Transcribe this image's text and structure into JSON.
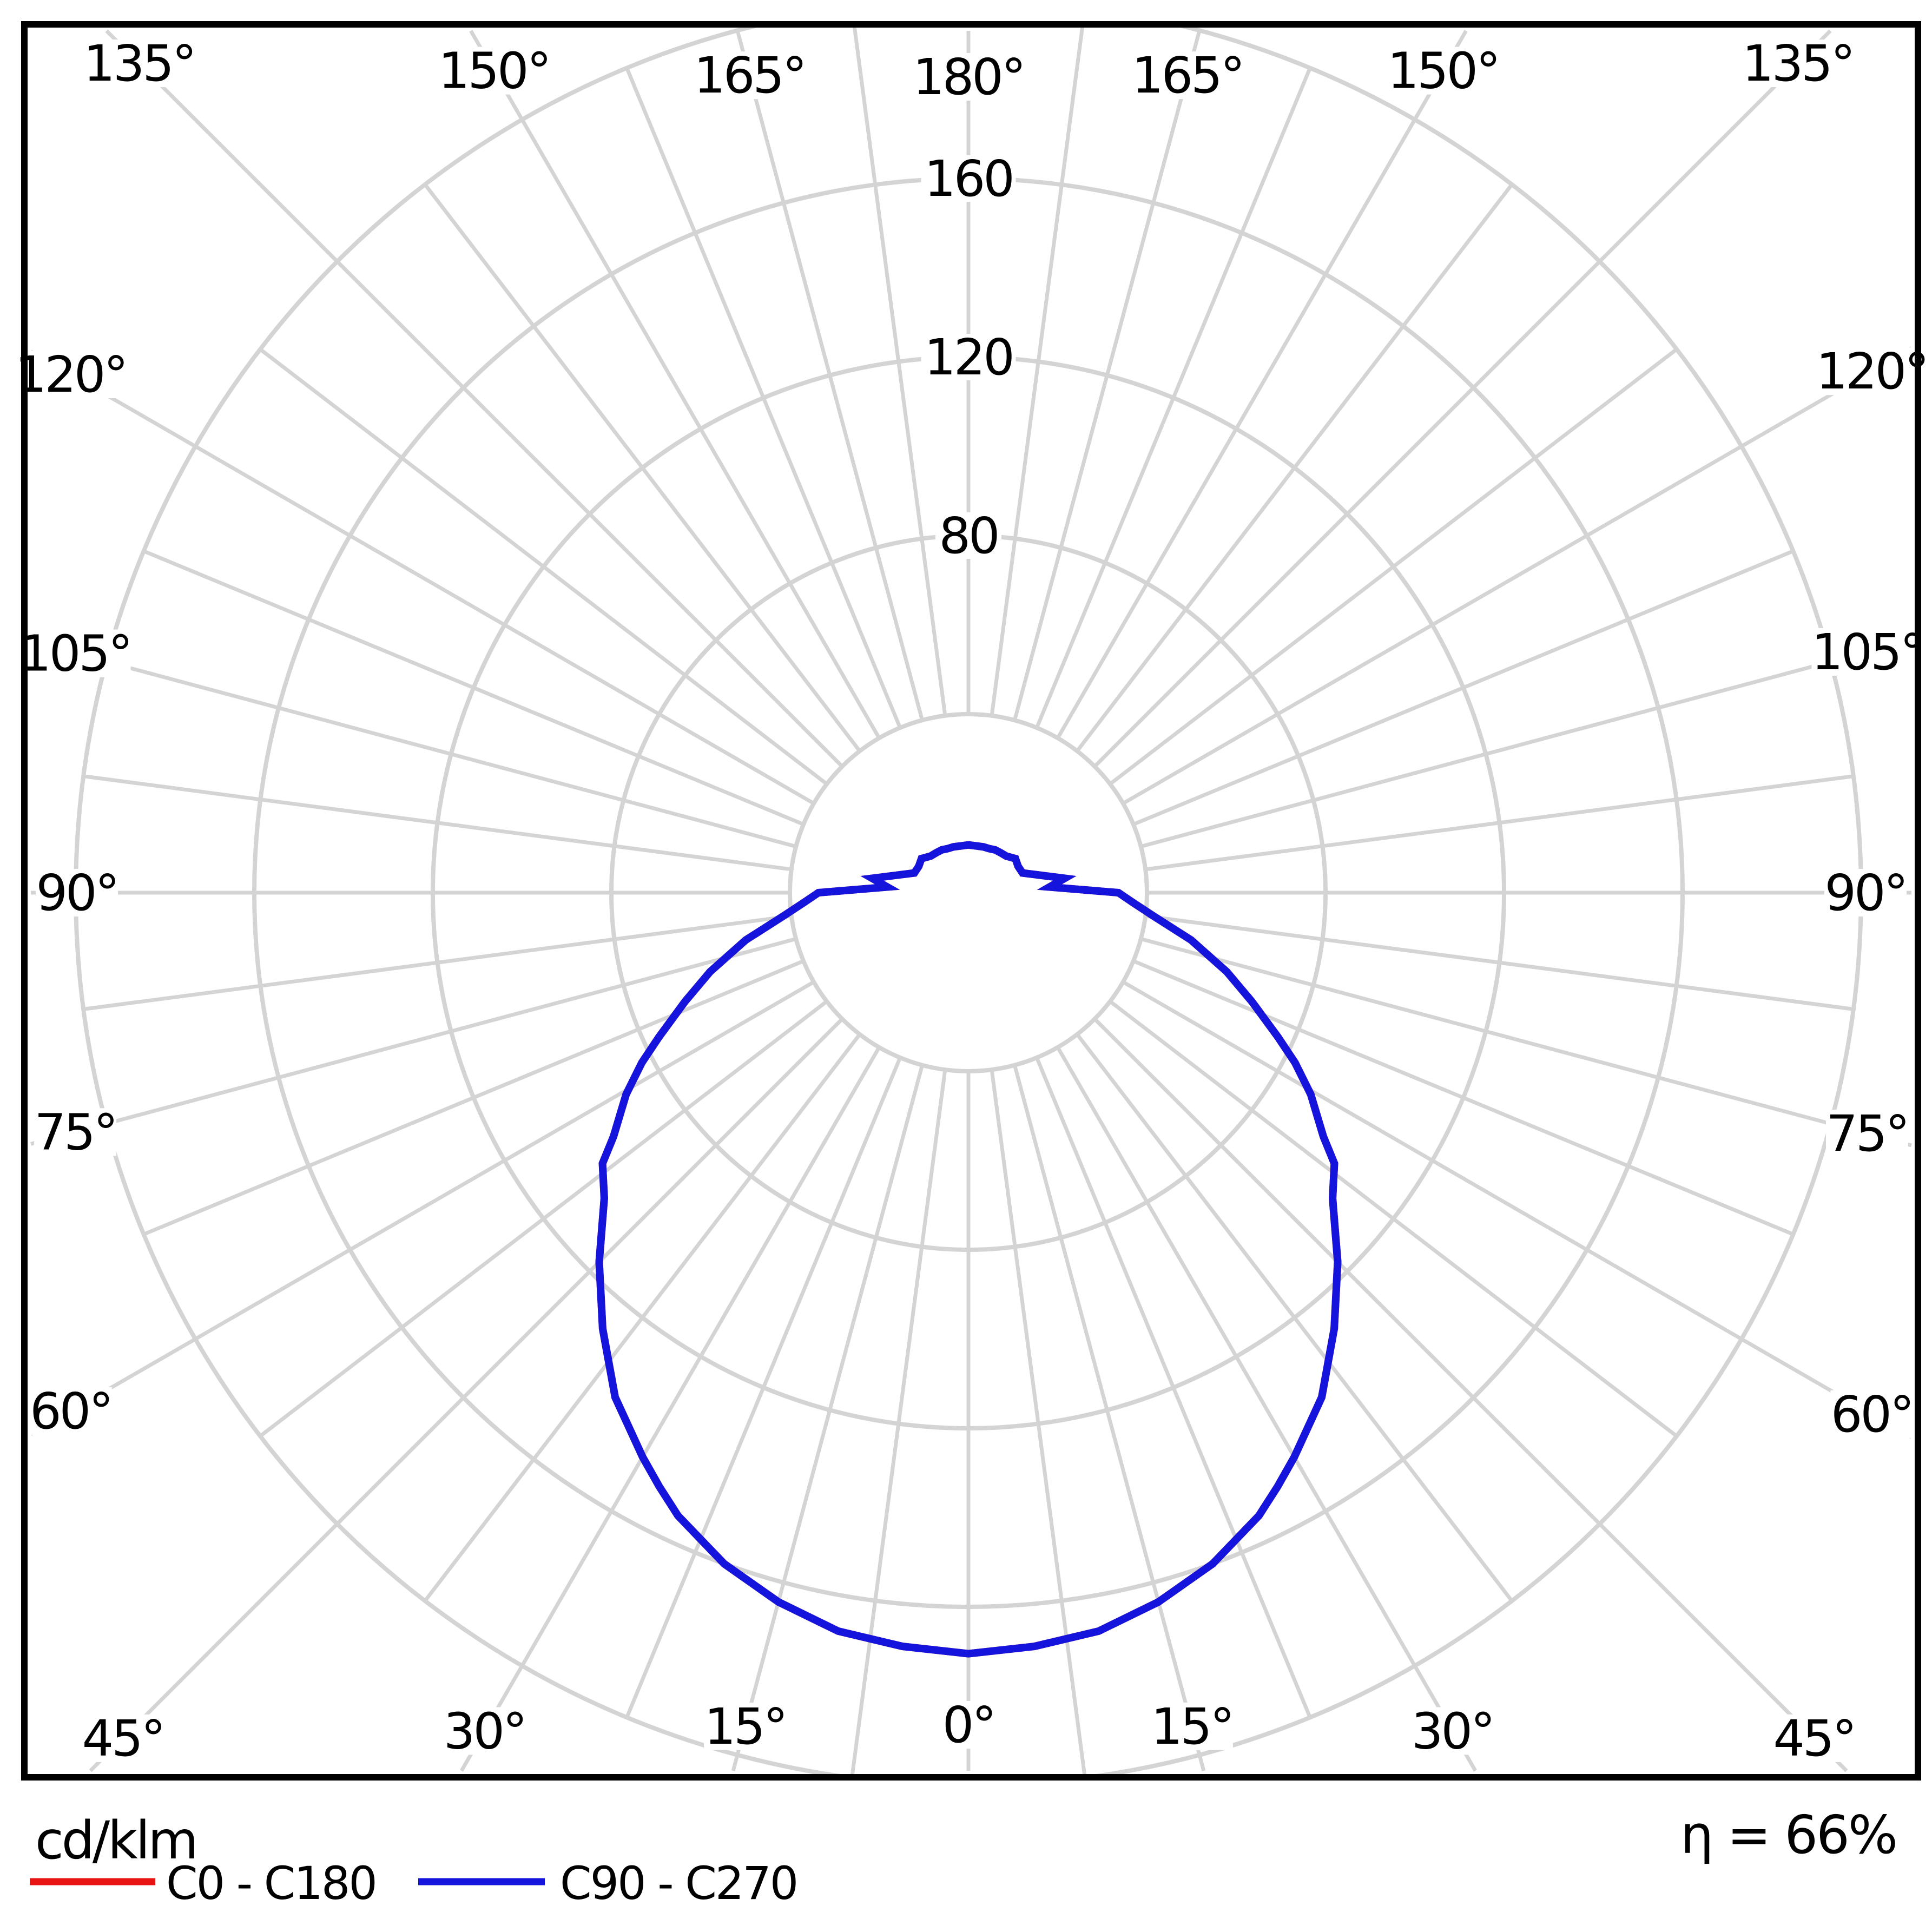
{
  "page": {
    "background_color": "#ffffff",
    "border_color": "#000000"
  },
  "legend": {
    "units_label": "cd/klm",
    "efficiency_label": "η = 66%",
    "entries": [
      {
        "label": "C0 - C180",
        "color": "#e81414"
      },
      {
        "label": "C90 - C270",
        "color": "#1414dd"
      }
    ]
  },
  "chart_data": {
    "type": "polar",
    "subtype": "photometric-luminous-intensity-distribution",
    "units": "cd/klm",
    "efficiency_percent": 66,
    "grid": {
      "color": "#d4d4d4",
      "shown": true,
      "angular_step_deg": 7.5,
      "labeled_angular_step_deg": 15
    },
    "angular_axis": {
      "zero_direction": "down",
      "mirrored_left_right": true,
      "labels": [
        "0°",
        "15°",
        "30°",
        "45°",
        "60°",
        "75°",
        "90°",
        "105°",
        "120°",
        "135°",
        "150°",
        "165°",
        "180°"
      ]
    },
    "radial_axis": {
      "min": 0,
      "max": 200,
      "ring_step": 40,
      "tick_values": [
        80,
        120,
        160
      ],
      "tick_labels": [
        "80",
        "120",
        "160"
      ]
    },
    "series": [
      {
        "name": "C0 - C180",
        "color": "#e81414",
        "symmetric": true,
        "note": "coincident with C90 - C270 curve (drawn beneath it, not separately visible)",
        "points": [
          [
            0,
            170.5
          ],
          [
            5,
            169.5
          ],
          [
            10,
            168
          ],
          [
            15,
            164.5
          ],
          [
            20,
            160
          ],
          [
            25,
            154
          ],
          [
            27.5,
            150
          ],
          [
            30,
            146
          ],
          [
            35,
            138
          ],
          [
            40,
            127.5
          ],
          [
            45,
            117
          ],
          [
            50,
            106.5
          ],
          [
            53.5,
            102
          ],
          [
            55.5,
            96.5
          ],
          [
            59.5,
            89
          ],
          [
            62.5,
            82.5
          ],
          [
            65,
            76.5
          ],
          [
            69,
            68
          ],
          [
            73,
            60.5
          ],
          [
            78,
            51
          ],
          [
            83,
            41.5
          ],
          [
            86.5,
            37
          ],
          [
            90,
            33.6
          ],
          [
            94,
            18.2
          ],
          [
            98.5,
            21.8
          ],
          [
            110,
            12.9
          ],
          [
            118,
            12.6
          ],
          [
            126,
            13
          ],
          [
            134,
            11.8
          ],
          [
            141,
            11.5
          ],
          [
            148,
            11.3
          ],
          [
            155,
            10.9
          ],
          [
            162,
            10.8
          ],
          [
            180,
            10.7
          ]
        ]
      },
      {
        "name": "C90 - C270",
        "color": "#1414dd",
        "symmetric": true,
        "points": [
          [
            0,
            170.5
          ],
          [
            5,
            169.5
          ],
          [
            10,
            168
          ],
          [
            15,
            164.5
          ],
          [
            20,
            160
          ],
          [
            25,
            154
          ],
          [
            27.5,
            150
          ],
          [
            30,
            146
          ],
          [
            35,
            138
          ],
          [
            40,
            127.5
          ],
          [
            45,
            117
          ],
          [
            50,
            106.5
          ],
          [
            53.5,
            102
          ],
          [
            55.5,
            96.5
          ],
          [
            59.5,
            89
          ],
          [
            62.5,
            82.5
          ],
          [
            65,
            76.5
          ],
          [
            69,
            68
          ],
          [
            73,
            60.5
          ],
          [
            78,
            51
          ],
          [
            83,
            41.5
          ],
          [
            86.5,
            37
          ],
          [
            90,
            33.6
          ],
          [
            94,
            18.2
          ],
          [
            98.5,
            21.8
          ],
          [
            110,
            12.9
          ],
          [
            118,
            12.6
          ],
          [
            126,
            13
          ],
          [
            134,
            11.8
          ],
          [
            141,
            11.5
          ],
          [
            148,
            11.3
          ],
          [
            155,
            10.9
          ],
          [
            162,
            10.8
          ],
          [
            180,
            10.7
          ]
        ]
      }
    ]
  }
}
